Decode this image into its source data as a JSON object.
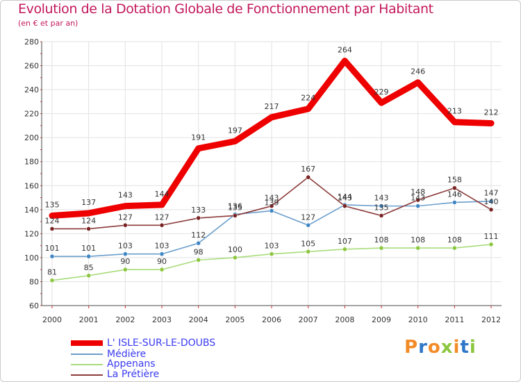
{
  "title": "Evolution de la Dotation Globale de Fonctionnement par Habitant",
  "subtitle": "(en € et par an)",
  "logo": {
    "text": "Proxiti",
    "colors": [
      "#f28c28",
      "#2f77c8",
      "#f28c28",
      "#8cc63f",
      "#f28c28",
      "#2f77c8",
      "#8cc63f"
    ]
  },
  "chart_data": {
    "type": "line",
    "categories": [
      "2000",
      "2001",
      "2002",
      "2003",
      "2004",
      "2005",
      "2006",
      "2007",
      "2008",
      "2009",
      "2010",
      "2011",
      "2012"
    ],
    "ylim": [
      60,
      280
    ],
    "yticks": [
      60,
      80,
      100,
      120,
      140,
      160,
      180,
      200,
      220,
      240,
      260,
      280
    ],
    "grid": true,
    "series": [
      {
        "name": "L' ISLE-SUR-LE-DOUBS",
        "color": "#ee0000",
        "values": [
          135,
          137,
          143,
          144,
          191,
          197,
          217,
          224,
          264,
          229,
          246,
          213,
          212
        ],
        "labels": [
          "135",
          "137",
          "143",
          "144",
          "191",
          "197",
          "217",
          "224",
          "264",
          "229",
          "246",
          "213",
          "212"
        ]
      },
      {
        "name": "Médière",
        "color": "#6a9ecb",
        "marker": "#3f86c4",
        "values": [
          101,
          101,
          103,
          103,
          112,
          136,
          139,
          127,
          144,
          143,
          143,
          146,
          147
        ],
        "labels": [
          "101",
          "101",
          "103",
          "103",
          "112",
          "136",
          "139",
          "127",
          "144",
          "143",
          "143",
          "146",
          "147"
        ]
      },
      {
        "name": "Appenans",
        "color": "#a8dc7a",
        "marker": "#8cc63f",
        "values": [
          81,
          85,
          90,
          90,
          98,
          100,
          103,
          105,
          107,
          108,
          108,
          108,
          111
        ],
        "labels": [
          "81",
          "85",
          "90",
          "90",
          "98",
          "100",
          "103",
          "105",
          "107",
          "108",
          "108",
          "108",
          "111"
        ]
      },
      {
        "name": "La Prétière",
        "color": "#8c3a3a",
        "marker": "#7a2323",
        "values": [
          124,
          124,
          127,
          127,
          133,
          135,
          143,
          167,
          143,
          135,
          148,
          158,
          140
        ],
        "labels": [
          "124",
          "124",
          "127",
          "127",
          "133",
          "135",
          "143",
          "167",
          "143",
          "135",
          "148",
          "158",
          "140"
        ]
      }
    ]
  }
}
